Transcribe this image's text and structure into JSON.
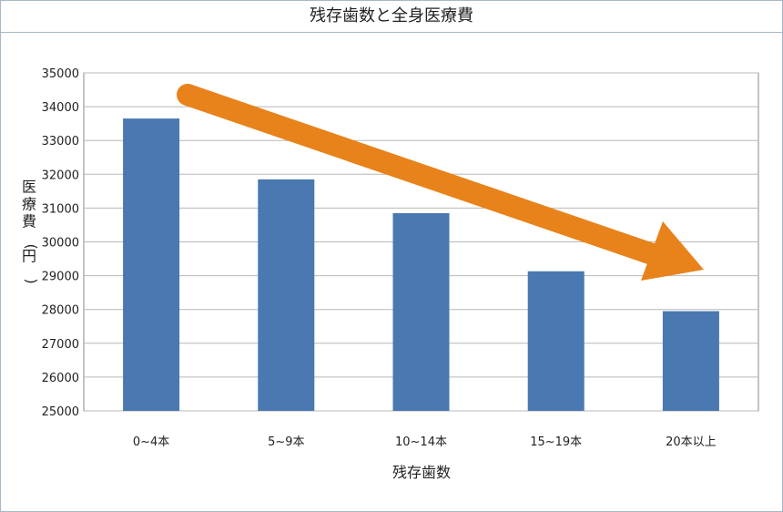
{
  "chart_data": {
    "type": "bar",
    "title": "残存歯数と全身医療費",
    "xlabel": "残存歯数",
    "ylabel": "医療費(円)",
    "categories": [
      "0~4本",
      "5~9本",
      "10~14本",
      "15~19本",
      "20本以上"
    ],
    "values": [
      33650,
      31850,
      30850,
      29130,
      27950
    ],
    "ylim": [
      25000,
      35000
    ],
    "yticks": [
      25000,
      26000,
      27000,
      28000,
      29000,
      30000,
      31000,
      32000,
      33000,
      34000,
      35000
    ],
    "grid": true,
    "bar_color": "#4a78b0",
    "annotation": {
      "type": "trend-arrow",
      "color": "#e8821a"
    }
  }
}
